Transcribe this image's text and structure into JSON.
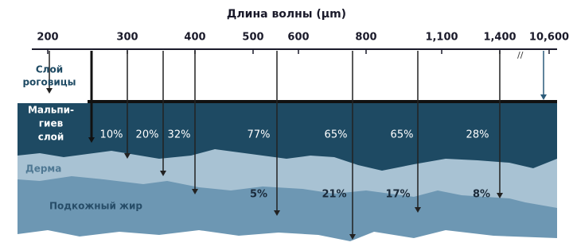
{
  "title": "Длина волны (µm)",
  "axis_ticks": [
    "200",
    "300",
    "400",
    "500",
    "600",
    "800",
    "1,100",
    "1,400",
    "10,600"
  ],
  "layers": {
    "stratum_corneum": [
      "Слой",
      "роговицы"
    ],
    "malpighian": [
      "Мальпи-",
      "гиев",
      "слой"
    ],
    "dermis": "Дерма",
    "subcutaneous": "Подкожный жир"
  },
  "upper_percentages": [
    "10%",
    "20%",
    "32%",
    "77%",
    "65%",
    "65%",
    "28%"
  ],
  "lower_percentages": [
    "5%",
    "21%",
    "17%",
    "8%"
  ]
}
